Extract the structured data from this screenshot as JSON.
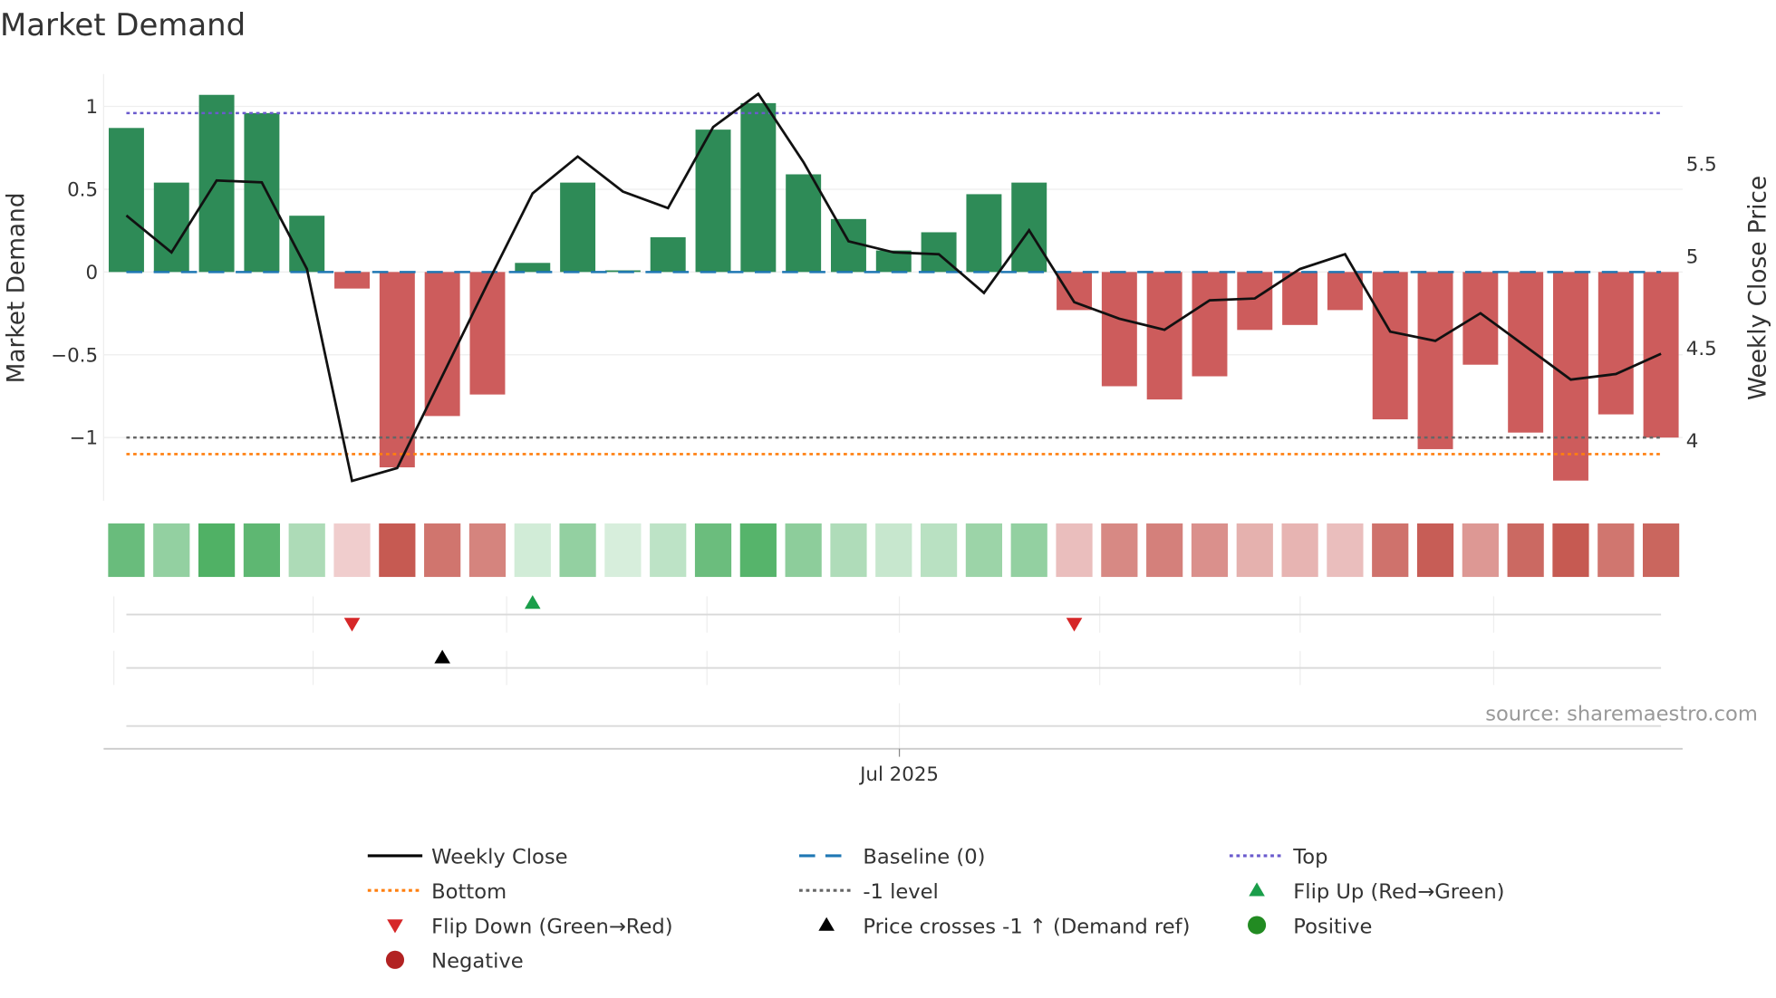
{
  "chart_data": {
    "type": "bar",
    "title": "Market Demand",
    "ylabel": "Market Demand",
    "y2label": "Weekly Close Price",
    "ylim": [
      -1.35,
      1.2
    ],
    "y2lim": [
      3.7,
      6.05
    ],
    "yticks": [
      1,
      0.5,
      0,
      -0.5,
      -1
    ],
    "ytick_labels": [
      "1",
      "0.5",
      "0",
      "−0.5",
      "−1"
    ],
    "y2ticks": [
      5.5,
      5,
      4.5,
      4
    ],
    "y2tick_labels": [
      "5.5",
      "5",
      "4.5",
      "4"
    ],
    "xtick_labels": [
      "Jul 2025"
    ],
    "source": "source: sharemaestro.com",
    "levels": {
      "top": 0.96,
      "baseline": 0,
      "minus_one": -1,
      "bottom": -1.1
    },
    "demand": [
      0.87,
      0.54,
      1.07,
      0.96,
      0.34,
      -0.1,
      -1.18,
      -0.87,
      -0.74,
      0.055,
      0.54,
      0.01,
      0.21,
      0.86,
      1.02,
      0.59,
      0.32,
      0.13,
      0.24,
      0.47,
      0.54,
      -0.23,
      -0.69,
      -0.77,
      -0.63,
      -0.35,
      -0.32,
      -0.23,
      -0.89,
      -1.07,
      -0.56,
      -0.97,
      -1.26,
      -0.86,
      -1.0
    ],
    "weekly_close": [
      5.22,
      5.02,
      5.41,
      5.4,
      4.93,
      3.78,
      3.85,
      4.35,
      4.85,
      5.34,
      5.54,
      5.35,
      5.26,
      5.7,
      5.88,
      5.51,
      5.08,
      5.02,
      5.01,
      4.8,
      5.14,
      4.75,
      4.66,
      4.6,
      4.76,
      4.77,
      4.93,
      5.01,
      4.59,
      4.54,
      4.69,
      4.51,
      4.33,
      4.36,
      4.47
    ],
    "flip_up_weeks": [
      10
    ],
    "flip_down_weeks": [
      6,
      22
    ],
    "price_cross_weeks": [
      8
    ],
    "legend": [
      {
        "label": "Weekly Close",
        "kind": "line",
        "color": "#000000"
      },
      {
        "label": "Baseline (0)",
        "kind": "dash",
        "color": "#1f77b4"
      },
      {
        "label": "Top",
        "kind": "dot",
        "color": "#6a5acd"
      },
      {
        "label": "Bottom",
        "kind": "dot",
        "color": "#ff7f0e"
      },
      {
        "label": "-1 level",
        "kind": "dot",
        "color": "#666666"
      },
      {
        "label": "Flip Up (Red→Green)",
        "kind": "tri-up",
        "color": "#1a9e4a"
      },
      {
        "label": "Flip Down (Green→Red)",
        "kind": "tri-down",
        "color": "#d62728"
      },
      {
        "label": "Price crosses -1 ↑ (Demand ref)",
        "kind": "tri-up",
        "color": "#000000"
      },
      {
        "label": "Positive",
        "kind": "circle",
        "color": "#228b22"
      },
      {
        "label": "Negative",
        "kind": "circle",
        "color": "#b22222"
      }
    ],
    "colors": {
      "positive_bar": "#2e8b57",
      "negative_bar": "#cd5c5c"
    }
  }
}
